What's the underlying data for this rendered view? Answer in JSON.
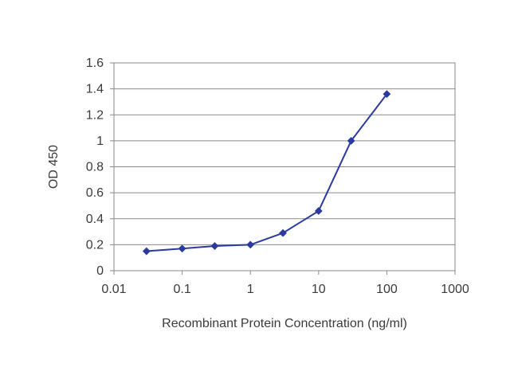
{
  "chart_data": {
    "type": "line",
    "xlabel": "Recombinant Protein Concentration (ng/ml)",
    "ylabel": "OD 450",
    "x_scale": "log",
    "xlim": [
      0.01,
      1000
    ],
    "ylim": [
      0,
      1.6
    ],
    "x_ticks": [
      "0.01",
      "0.1",
      "1",
      "10",
      "100",
      "1000"
    ],
    "y_ticks": [
      "0",
      "0.2",
      "0.4",
      "0.6",
      "0.8",
      "1",
      "1.2",
      "1.4",
      "1.6"
    ],
    "grid": "horizontal",
    "series": [
      {
        "color": "#2b3a9e",
        "x": [
          0.03,
          0.1,
          0.3,
          1,
          3,
          10,
          30,
          100
        ],
        "y": [
          0.15,
          0.17,
          0.19,
          0.2,
          0.29,
          0.46,
          1.0,
          1.36
        ]
      }
    ]
  }
}
